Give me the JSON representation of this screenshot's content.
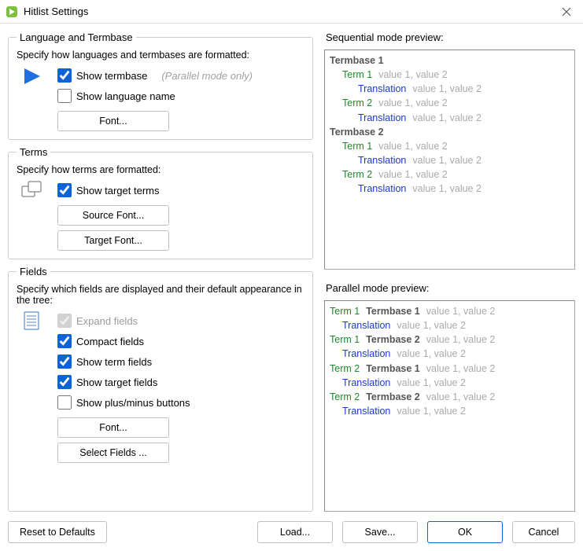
{
  "window": {
    "title": "Hitlist Settings",
    "icon_bg": "#7fbf3f",
    "icon_triangle": "#ffffff"
  },
  "groups": {
    "lang": {
      "legend": "Language and Termbase",
      "desc": "Specify how languages and termbases are formatted:",
      "play_icon_color": "#1f6fe0",
      "show_termbase": {
        "label": "Show termbase",
        "checked": true,
        "hint": "(Parallel mode only)"
      },
      "show_lang_name": {
        "label": "Show language name",
        "checked": false
      },
      "font_btn": "Font..."
    },
    "terms": {
      "legend": "Terms",
      "desc": "Specify how terms are formatted:",
      "show_target_terms": {
        "label": "Show target terms",
        "checked": true
      },
      "source_font_btn": "Source Font...",
      "target_font_btn": "Target Font..."
    },
    "fields": {
      "legend": "Fields",
      "desc": "Specify which fields are displayed and their default appearance in the tree:",
      "expand_fields": {
        "label": "Expand fields",
        "checked": true,
        "disabled": true
      },
      "compact_fields": {
        "label": "Compact fields",
        "checked": true
      },
      "show_term_fields": {
        "label": "Show term fields",
        "checked": true
      },
      "show_target_fields": {
        "label": "Show target fields",
        "checked": true
      },
      "show_plus_minus": {
        "label": "Show plus/minus buttons",
        "checked": false
      },
      "font_btn": "Font...",
      "select_fields_btn": "Select Fields ..."
    }
  },
  "previews": {
    "sequential_label": "Sequential mode preview:",
    "parallel_label": "Parallel mode preview:",
    "values_text": "value 1, value 2",
    "sequential": [
      {
        "type": "tb-head",
        "text": "Termbase 1"
      },
      {
        "type": "term",
        "indent": 1,
        "text": "Term 1"
      },
      {
        "type": "trans",
        "indent": 2,
        "text": "Translation"
      },
      {
        "type": "term",
        "indent": 1,
        "text": "Term 2"
      },
      {
        "type": "trans",
        "indent": 2,
        "text": "Translation"
      },
      {
        "type": "tb-head",
        "text": "Termbase 2"
      },
      {
        "type": "term",
        "indent": 1,
        "text": "Term 1"
      },
      {
        "type": "trans",
        "indent": 2,
        "text": "Translation"
      },
      {
        "type": "term",
        "indent": 1,
        "text": "Term 2"
      },
      {
        "type": "trans",
        "indent": 2,
        "text": "Translation"
      }
    ],
    "parallel": [
      {
        "term": "Term 1",
        "tb": "Termbase 1"
      },
      {
        "term": "Term 1",
        "tb": "Termbase 2"
      },
      {
        "term": "Term 2",
        "tb": "Termbase 1"
      },
      {
        "term": "Term 2",
        "tb": "Termbase 2"
      }
    ]
  },
  "footer": {
    "reset": "Reset to Defaults",
    "load": "Load...",
    "save": "Save...",
    "ok": "OK",
    "cancel": "Cancel"
  },
  "colors": {
    "term": "#1a8a2a",
    "translation": "#1a3ac6",
    "termbase_head": "#555555",
    "values": "#aaaaaa",
    "checkbox_accent": "#0b64d3"
  }
}
